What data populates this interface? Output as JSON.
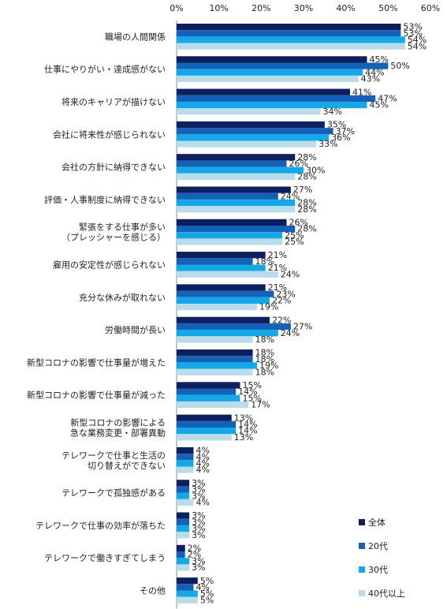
{
  "chart_data": {
    "type": "bar",
    "orientation": "horizontal",
    "categories": [
      "職場の人間関係",
      "仕事にやりがい・達成感がない",
      "将来のキャリアが描けない",
      "会社に将来性が感じられない",
      "会社の方針に納得できない",
      "評価・人事制度に納得できない",
      "緊張をする仕事が多い\n（プレッシャーを感じる）",
      "雇用の安定性が感じられない",
      "充分な休みが取れない",
      "労働時間が長い",
      "新型コロナの影響で仕事量が増えた",
      "新型コロナの影響で仕事量が減った",
      "新型コロナの影響による\n急な業務変更・部署異動",
      "テレワークで仕事と生活の\n切り替えができない",
      "テレワークで孤独感がある",
      "テレワークで仕事の効率が落ちた",
      "テレワークで働きすぎてしまう",
      "その他"
    ],
    "series": [
      {
        "name": "全体",
        "color": "#0d1f5c",
        "values": [
          53,
          45,
          41,
          35,
          28,
          27,
          26,
          21,
          21,
          22,
          18,
          15,
          13,
          4,
          3,
          3,
          2,
          5
        ]
      },
      {
        "name": "20代",
        "color": "#1560b8",
        "values": [
          53,
          50,
          47,
          37,
          26,
          24,
          28,
          18,
          23,
          27,
          18,
          14,
          14,
          4,
          3,
          3,
          2,
          4
        ]
      },
      {
        "name": "30代",
        "color": "#14a8e8",
        "values": [
          54,
          44,
          45,
          36,
          30,
          28,
          25,
          21,
          22,
          24,
          19,
          15,
          14,
          4,
          3,
          3,
          3,
          5
        ]
      },
      {
        "name": "40代以上",
        "color": "#b8dcea",
        "values": [
          54,
          43,
          34,
          33,
          28,
          28,
          25,
          24,
          19,
          18,
          18,
          17,
          13,
          4,
          4,
          3,
          3,
          5
        ]
      }
    ],
    "x_ticks": [
      "0%",
      "10%",
      "20%",
      "30%",
      "40%",
      "50%",
      "60%"
    ],
    "xlim": [
      0,
      60
    ],
    "value_suffix": "%",
    "legend_position": "bottom-right",
    "grid": false
  }
}
